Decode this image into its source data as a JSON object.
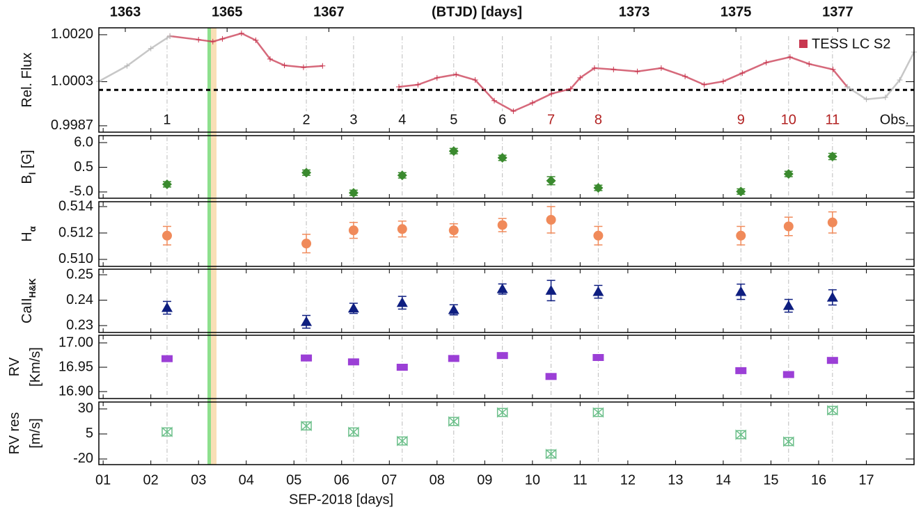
{
  "chart_data": [
    {
      "type": "line",
      "ylabel_lines": [
        [
          {
            "text": "Rel. Flux"
          }
        ]
      ],
      "ylim": [
        0.99847,
        1.00225
      ],
      "yticks": [
        {
          "value": 1.002,
          "label": "1.0020"
        },
        {
          "value": 1.0003,
          "label": "1.0003"
        },
        0.9987
      ],
      "x2label": "(BTJD) [days]",
      "x2lim": [
        1362.48,
        1378.5
      ],
      "x2ticks": [
        1363,
        1365,
        1367,
        1373,
        1375,
        1377
      ],
      "reference_line": 1.0,
      "legend": "upper right",
      "series": [
        {
          "name": "TESS LC S2",
          "color": "#c8374f",
          "x": [
            2.4,
            3.0,
            3.3,
            3.5,
            3.9,
            4.2,
            4.5,
            4.8,
            5.2,
            5.6,
            6.4,
            7.2,
            7.6,
            8.0,
            8.4,
            8.8,
            9.2,
            9.6,
            10.0,
            10.4,
            10.8,
            11.0,
            11.3,
            11.7,
            12.2,
            12.7,
            13.2,
            13.6,
            14.0,
            14.4,
            14.9,
            15.4,
            15.8,
            16.3,
            16.6
          ],
          "values": [
            1.00195,
            1.00182,
            1.00175,
            1.00185,
            1.00205,
            1.0018,
            1.00112,
            1.00089,
            1.00082,
            1.00087,
            null,
            1.00011,
            1.00019,
            1.00044,
            1.00056,
            1.00036,
            0.99961,
            0.99923,
            0.99953,
            0.99986,
            1.00004,
            1.00044,
            1.00079,
            1.00074,
            1.00067,
            1.00079,
            1.00049,
            1.00019,
            1.00031,
            1.00061,
            1.00099,
            1.00119,
            1.00094,
            1.00074,
            1.00011
          ]
        },
        {
          "color": "#b4b4b4",
          "x": [
            0.91,
            1.5,
            2.0,
            2.4,
            9.0,
            16.6,
            17.0,
            17.4,
            17.7,
            18.0
          ],
          "values": [
            1.00031,
            1.00087,
            1.0015,
            1.00195,
            null,
            1.00011,
            0.99966,
            0.99973,
            1.00036,
            1.00137
          ]
        }
      ],
      "obs_labels": [
        "1",
        "2",
        "3",
        "4",
        "5",
        "6",
        "7",
        "8",
        "9",
        "10",
        "11"
      ],
      "obs_label_colors": [
        "#111111",
        "#111111",
        "#111111",
        "#111111",
        "#111111",
        "#111111",
        "#b22222",
        "#b22222",
        "#b22222",
        "#b22222",
        "#b22222"
      ],
      "obs_label_end": "Obs."
    },
    {
      "type": "errorbar",
      "marker": "diamond",
      "color": "#3a8a2e",
      "ylabel_lines": [
        [
          {
            "text": "B"
          },
          {
            "text": "l",
            "sub": true
          },
          {
            "text": " [G]"
          }
        ]
      ],
      "ylim": [
        -6.4,
        7.55
      ],
      "yticks": [
        {
          "value": 6,
          "label": "6.0"
        },
        0.5,
        {
          "value": -5,
          "label": "-5.0"
        }
      ],
      "x": [
        2.34,
        5.26,
        6.25,
        7.27,
        8.35,
        9.37,
        10.39,
        11.38,
        14.37,
        15.37,
        16.29
      ],
      "values": [
        -3.3,
        -0.7,
        -5.2,
        -1.3,
        4.1,
        2.6,
        -2.5,
        -4.1,
        -4.9,
        -1.0,
        2.9
      ],
      "errors": [
        0.6,
        0.6,
        0.6,
        0.6,
        0.6,
        0.6,
        0.9,
        0.6,
        0.6,
        0.6,
        0.7
      ]
    },
    {
      "type": "errorbar",
      "marker": "circle",
      "color": "#f08a5a",
      "ylabel_lines": [
        [
          {
            "text": "H"
          },
          {
            "text": "α",
            "sub": true
          }
        ]
      ],
      "ylim": [
        0.50947,
        0.51437
      ],
      "yticks": [
        0.514,
        0.512,
        {
          "value": 0.51,
          "label": "0.510"
        }
      ],
      "x": [
        2.34,
        5.26,
        6.25,
        7.27,
        8.35,
        9.37,
        10.39,
        11.38,
        14.37,
        15.37,
        16.29
      ],
      "values": [
        0.5118,
        0.5112,
        0.5122,
        0.5123,
        0.5122,
        0.5126,
        0.513,
        0.5118,
        0.5118,
        0.5125,
        0.5128
      ],
      "errors": [
        0.0007,
        0.0007,
        0.0006,
        0.0006,
        0.0005,
        0.0005,
        0.001,
        0.0007,
        0.0007,
        0.0007,
        0.0008
      ]
    },
    {
      "type": "errorbar",
      "marker": "triangle",
      "color": "#0e1e80",
      "ylabel_lines": [
        [
          {
            "text": "CaII"
          },
          {
            "text": "H&K",
            "sub": true
          }
        ]
      ],
      "ylim": [
        0.2273,
        0.2522
      ],
      "yticks": [
        0.25,
        0.24,
        0.23
      ],
      "x": [
        2.34,
        5.26,
        6.25,
        7.27,
        8.35,
        9.37,
        10.39,
        11.38,
        14.37,
        15.37,
        16.29
      ],
      "values": [
        0.237,
        0.2315,
        0.2368,
        0.239,
        0.2362,
        0.2444,
        0.2438,
        0.2433,
        0.2433,
        0.2378,
        0.2411
      ],
      "errors": [
        0.0025,
        0.0025,
        0.002,
        0.0025,
        0.002,
        0.002,
        0.004,
        0.0025,
        0.003,
        0.0025,
        0.003
      ]
    },
    {
      "type": "errorbar",
      "marker": "square",
      "color": "#9b3fd6",
      "ylabel_lines": [
        [
          {
            "text": "RV"
          }
        ],
        [
          {
            "text": "[Km/s]"
          }
        ]
      ],
      "ylim": [
        16.8857,
        17.0157
      ],
      "yticks": [
        {
          "value": 17,
          "label": "17.00"
        },
        16.95,
        {
          "value": 16.9,
          "label": "16.90"
        }
      ],
      "x": [
        2.34,
        5.26,
        6.25,
        7.27,
        8.35,
        9.37,
        10.39,
        11.38,
        14.37,
        15.37,
        16.29
      ],
      "values": [
        16.9676,
        16.969,
        16.961,
        16.95,
        16.968,
        16.974,
        16.931,
        16.97,
        16.943,
        16.935,
        16.964
      ],
      "errors": [
        0.005,
        0.005,
        0.005,
        0.005,
        0.005,
        0.005,
        0.005,
        0.005,
        0.005,
        0.005,
        0.005
      ]
    },
    {
      "type": "errorbar",
      "marker": "bowtie",
      "color": "#6cbf8a",
      "ylabel_lines": [
        [
          {
            "text": "RV res"
          }
        ],
        [
          {
            "text": "[m/s]"
          }
        ]
      ],
      "ylim": [
        -25.6,
        36.9
      ],
      "yticks": [
        30,
        5,
        -20
      ],
      "x": [
        2.34,
        5.26,
        6.25,
        7.27,
        8.35,
        9.37,
        10.39,
        11.38,
        14.37,
        15.37,
        16.29
      ],
      "values": [
        7,
        13,
        7,
        -2,
        17.5,
        26.5,
        -15,
        26.5,
        4.3,
        -2.6,
        28.6
      ],
      "errors": [
        4,
        4,
        4,
        4,
        4,
        4,
        4,
        4,
        4,
        4,
        4
      ],
      "xlabel": "SEP-2018 [days]",
      "xlim": [
        0.91,
        18.0
      ],
      "xticks": [
        {
          "value": 1,
          "label": "01"
        },
        {
          "value": 2,
          "label": "02"
        },
        {
          "value": 3,
          "label": "03"
        },
        {
          "value": 4,
          "label": "04"
        },
        {
          "value": 5,
          "label": "05"
        },
        {
          "value": 6,
          "label": "06"
        },
        {
          "value": 7,
          "label": "07"
        },
        {
          "value": 8,
          "label": "08"
        },
        {
          "value": 9,
          "label": "09"
        },
        10,
        11,
        12,
        13,
        14,
        15,
        16,
        17
      ]
    }
  ]
}
